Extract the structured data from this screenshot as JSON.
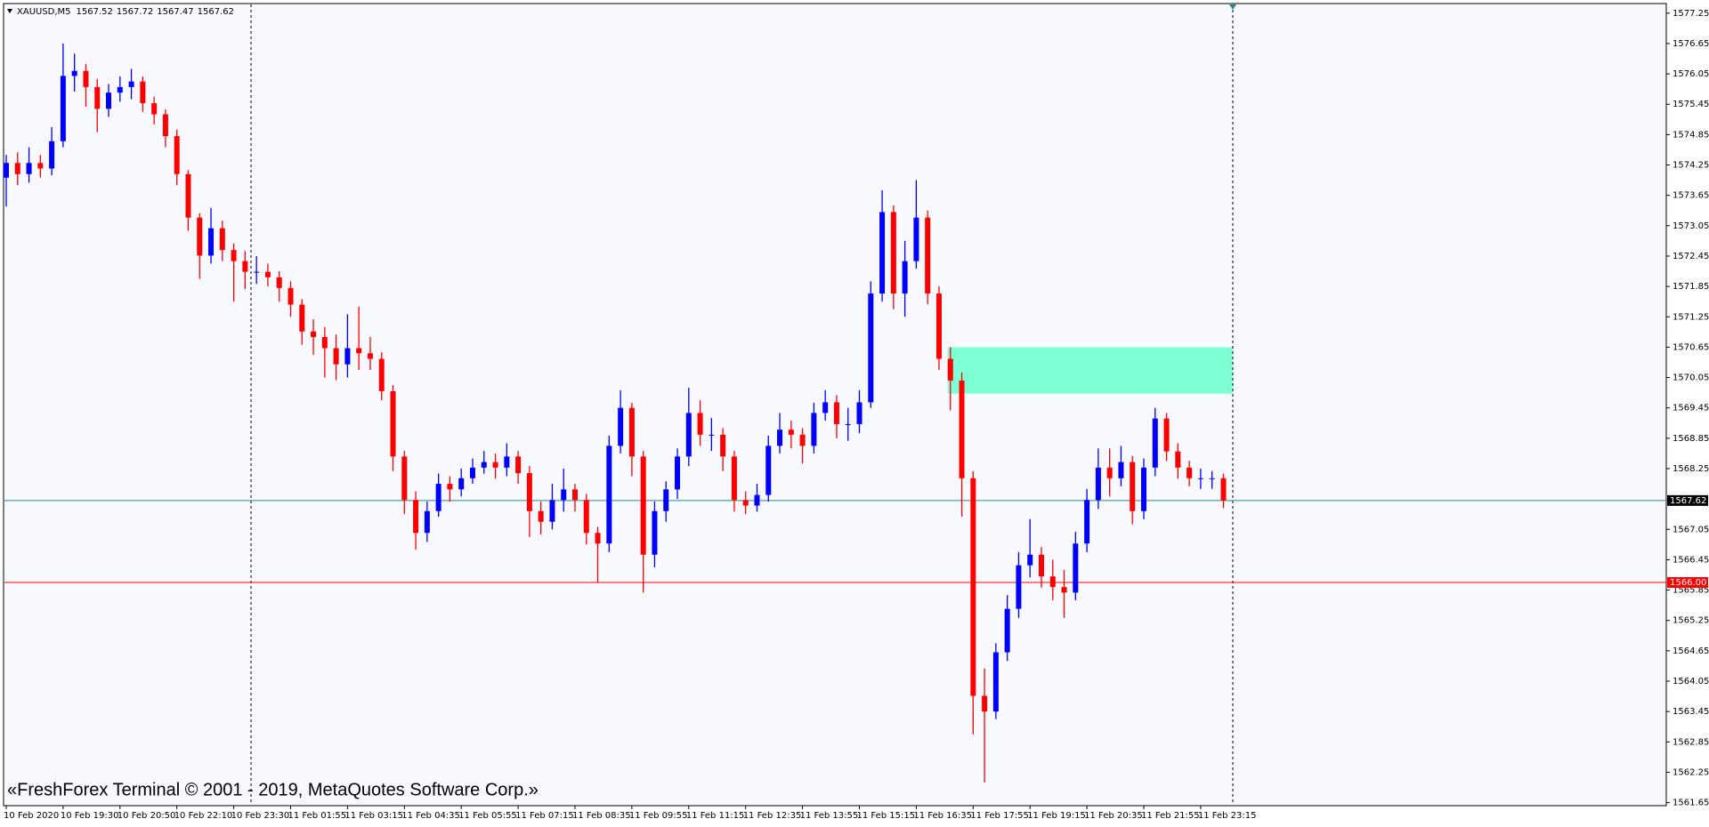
{
  "chart_data": {
    "type": "candlestick",
    "title": "XAUUSD,M5",
    "header_values": [
      1567.52,
      1567.72,
      1567.47,
      1567.62
    ],
    "copyright": "«FreshForex Terminal © 2001 - 2019, MetaQuotes Software Corp.»",
    "up_color": "#0000ff",
    "down_color": "#ff0000",
    "categories": [
      "10 Feb 2020",
      null,
      null,
      null,
      null,
      "10 Feb 19:30",
      null,
      null,
      null,
      null,
      "10 Feb 20:50",
      null,
      null,
      null,
      null,
      "10 Feb 22:10",
      null,
      null,
      null,
      null,
      "10 Feb 23:30",
      null,
      null,
      null,
      null,
      "11 Feb 01:55",
      null,
      null,
      null,
      null,
      "11 Feb 03:15",
      null,
      null,
      null,
      null,
      "11 Feb 04:35",
      null,
      null,
      null,
      null,
      "11 Feb 05:55",
      null,
      null,
      null,
      null,
      "11 Feb 07:15",
      null,
      null,
      null,
      null,
      "11 Feb 08:35",
      null,
      null,
      null,
      null,
      "11 Feb 09:55",
      null,
      null,
      null,
      null,
      "11 Feb 11:15",
      null,
      null,
      null,
      null,
      "11 Feb 12:35",
      null,
      null,
      null,
      null,
      "11 Feb 13:55",
      null,
      null,
      null,
      null,
      "11 Feb 15:15",
      null,
      null,
      null,
      null,
      "11 Feb 16:35",
      null,
      null,
      null,
      null,
      "11 Feb 17:55",
      null,
      null,
      null,
      null,
      "11 Feb 19:15",
      null,
      null,
      null,
      null,
      "11 Feb 20:35",
      null,
      null,
      null,
      null,
      "11 Feb 21:55",
      null,
      null,
      null,
      null,
      "11 Feb 23:15",
      null,
      null
    ],
    "open": [
      1574.0,
      1574.29,
      1574.07,
      1574.29,
      1574.18,
      1574.72,
      1576.01,
      1576.11,
      1575.79,
      1575.36,
      1575.68,
      1575.79,
      1575.9,
      1575.47,
      1575.25,
      1574.82,
      1574.07,
      1573.21,
      1572.46,
      1573.0,
      1572.57,
      1572.35,
      1572.14,
      1572.14,
      1572.03,
      1571.82,
      1571.49,
      1570.96,
      1570.85,
      1570.63,
      1570.31,
      1570.63,
      1570.53,
      1570.42,
      1569.78,
      1568.49,
      1567.63,
      1566.98,
      1567.41,
      1567.95,
      1567.84,
      1568.06,
      1568.27,
      1568.38,
      1568.27,
      1568.49,
      1568.16,
      1567.41,
      1567.2,
      1567.63,
      1567.84,
      1567.63,
      1566.98,
      1566.77,
      1568.7,
      1569.45,
      1568.49,
      1566.55,
      1567.41,
      1567.84,
      1568.49,
      1569.35,
      1568.92,
      1568.92,
      1568.49,
      1567.63,
      1567.52,
      1567.73,
      1568.7,
      1569.02,
      1568.92,
      1568.7,
      1569.35,
      1569.56,
      1569.13,
      1569.13,
      1569.56,
      1571.71,
      1573.32,
      1571.71,
      1572.35,
      1573.21,
      1571.71,
      1570.42,
      1569.99,
      1568.06,
      1563.76,
      1563.45,
      1564.62,
      1565.48,
      1566.34,
      1566.55,
      1566.12,
      1565.91,
      1565.8,
      1566.77,
      1567.63,
      1568.27,
      1568.06,
      1568.38,
      1567.41,
      1568.27,
      1569.24,
      1568.59,
      1568.27,
      1568.06,
      1568.06,
      1568.06
    ],
    "high": [
      1574.45,
      1574.5,
      1574.6,
      1574.45,
      1575.0,
      1576.65,
      1576.45,
      1576.25,
      1575.95,
      1575.85,
      1576.0,
      1576.15,
      1576.0,
      1575.6,
      1575.35,
      1574.95,
      1574.15,
      1573.3,
      1573.4,
      1573.15,
      1572.7,
      1572.55,
      1572.45,
      1572.3,
      1572.15,
      1571.95,
      1571.6,
      1571.2,
      1571.05,
      1570.9,
      1571.3,
      1571.45,
      1570.85,
      1570.55,
      1569.9,
      1568.6,
      1567.8,
      1567.6,
      1568.15,
      1568.1,
      1568.25,
      1568.45,
      1568.6,
      1568.55,
      1568.75,
      1568.6,
      1568.3,
      1567.6,
      1567.95,
      1568.25,
      1567.95,
      1567.75,
      1567.1,
      1568.9,
      1569.8,
      1569.55,
      1568.6,
      1567.6,
      1568.0,
      1568.65,
      1569.85,
      1569.6,
      1569.25,
      1569.05,
      1568.6,
      1567.8,
      1567.95,
      1568.9,
      1569.35,
      1569.2,
      1569.05,
      1569.55,
      1569.8,
      1569.7,
      1569.45,
      1569.8,
      1571.95,
      1573.75,
      1573.45,
      1572.75,
      1573.95,
      1573.35,
      1571.85,
      1570.65,
      1570.15,
      1568.2,
      1564.3,
      1564.8,
      1565.75,
      1566.6,
      1567.25,
      1566.7,
      1566.45,
      1566.25,
      1567.0,
      1567.85,
      1568.65,
      1568.65,
      1568.7,
      1568.5,
      1568.45,
      1569.45,
      1569.35,
      1568.75,
      1568.4,
      1568.25,
      1568.2,
      1568.15
    ],
    "low": [
      1573.43,
      1573.85,
      1573.9,
      1574.0,
      1574.05,
      1574.6,
      1575.7,
      1575.4,
      1574.9,
      1575.2,
      1575.5,
      1575.55,
      1575.3,
      1575.05,
      1574.6,
      1573.85,
      1572.95,
      1572.0,
      1572.3,
      1572.35,
      1571.55,
      1571.8,
      1571.9,
      1571.85,
      1571.55,
      1571.25,
      1570.7,
      1570.5,
      1570.05,
      1570.0,
      1570.05,
      1570.2,
      1570.2,
      1569.6,
      1568.2,
      1567.35,
      1566.65,
      1566.8,
      1567.3,
      1567.6,
      1567.7,
      1567.95,
      1568.15,
      1568.05,
      1568.1,
      1567.95,
      1566.9,
      1566.95,
      1567.05,
      1567.4,
      1567.4,
      1566.75,
      1566.0,
      1566.6,
      1568.55,
      1568.1,
      1565.8,
      1566.3,
      1567.2,
      1567.65,
      1568.3,
      1568.7,
      1568.6,
      1568.2,
      1567.4,
      1567.35,
      1567.4,
      1567.6,
      1568.55,
      1568.65,
      1568.35,
      1568.55,
      1569.2,
      1568.85,
      1568.8,
      1568.95,
      1569.45,
      1571.55,
      1571.4,
      1571.25,
      1572.2,
      1571.5,
      1570.2,
      1569.4,
      1567.3,
      1563.0,
      1562.05,
      1563.3,
      1564.45,
      1565.3,
      1566.1,
      1565.9,
      1565.65,
      1565.3,
      1565.65,
      1566.6,
      1567.45,
      1567.7,
      1567.9,
      1567.15,
      1567.25,
      1568.1,
      1568.4,
      1568.05,
      1567.9,
      1567.85,
      1567.85,
      1567.47
    ],
    "close": [
      1574.29,
      1574.07,
      1574.29,
      1574.18,
      1574.72,
      1576.01,
      1576.11,
      1575.79,
      1575.36,
      1575.68,
      1575.79,
      1575.9,
      1575.47,
      1575.25,
      1574.82,
      1574.07,
      1573.21,
      1572.46,
      1573.0,
      1572.57,
      1572.35,
      1572.14,
      1572.14,
      1572.03,
      1571.82,
      1571.49,
      1570.96,
      1570.85,
      1570.63,
      1570.31,
      1570.63,
      1570.53,
      1570.42,
      1569.78,
      1568.49,
      1567.63,
      1566.98,
      1567.41,
      1567.95,
      1567.84,
      1568.06,
      1568.27,
      1568.38,
      1568.27,
      1568.49,
      1568.16,
      1567.41,
      1567.2,
      1567.63,
      1567.84,
      1567.63,
      1566.98,
      1566.77,
      1568.7,
      1569.45,
      1568.49,
      1566.55,
      1567.41,
      1567.84,
      1568.49,
      1569.35,
      1568.92,
      1568.92,
      1568.49,
      1567.63,
      1567.52,
      1567.73,
      1568.7,
      1569.02,
      1568.92,
      1568.7,
      1569.35,
      1569.56,
      1569.13,
      1569.13,
      1569.56,
      1571.71,
      1573.32,
      1571.71,
      1572.35,
      1573.21,
      1571.71,
      1570.42,
      1569.99,
      1568.06,
      1563.76,
      1563.45,
      1564.62,
      1565.48,
      1566.34,
      1566.55,
      1566.12,
      1565.91,
      1565.8,
      1566.77,
      1567.63,
      1568.27,
      1568.06,
      1568.38,
      1567.41,
      1568.27,
      1569.24,
      1568.59,
      1568.27,
      1568.06,
      1568.06,
      1568.06,
      1567.62
    ],
    "ylim": [
      1561.59,
      1577.44
    ],
    "yticks": [
      1561.65,
      1562.25,
      1562.85,
      1563.45,
      1564.05,
      1564.65,
      1565.25,
      1565.85,
      1566.45,
      1567.05,
      1568.25,
      1568.85,
      1569.45,
      1570.05,
      1570.65,
      1571.25,
      1571.85,
      1572.45,
      1573.05,
      1573.65,
      1574.25,
      1574.85,
      1575.45,
      1576.05,
      1576.65,
      1577.25
    ],
    "hlines": [
      {
        "value": 1567.62,
        "color": "#2a8a8a",
        "tag_color": "#000000"
      },
      {
        "value": 1566.0,
        "label": "1566.00",
        "color": "#ff0000",
        "tag_color": "#ff0000"
      }
    ],
    "zone": {
      "high": 1570.65,
      "low": 1569.73,
      "color": "#7fffd4"
    }
  }
}
